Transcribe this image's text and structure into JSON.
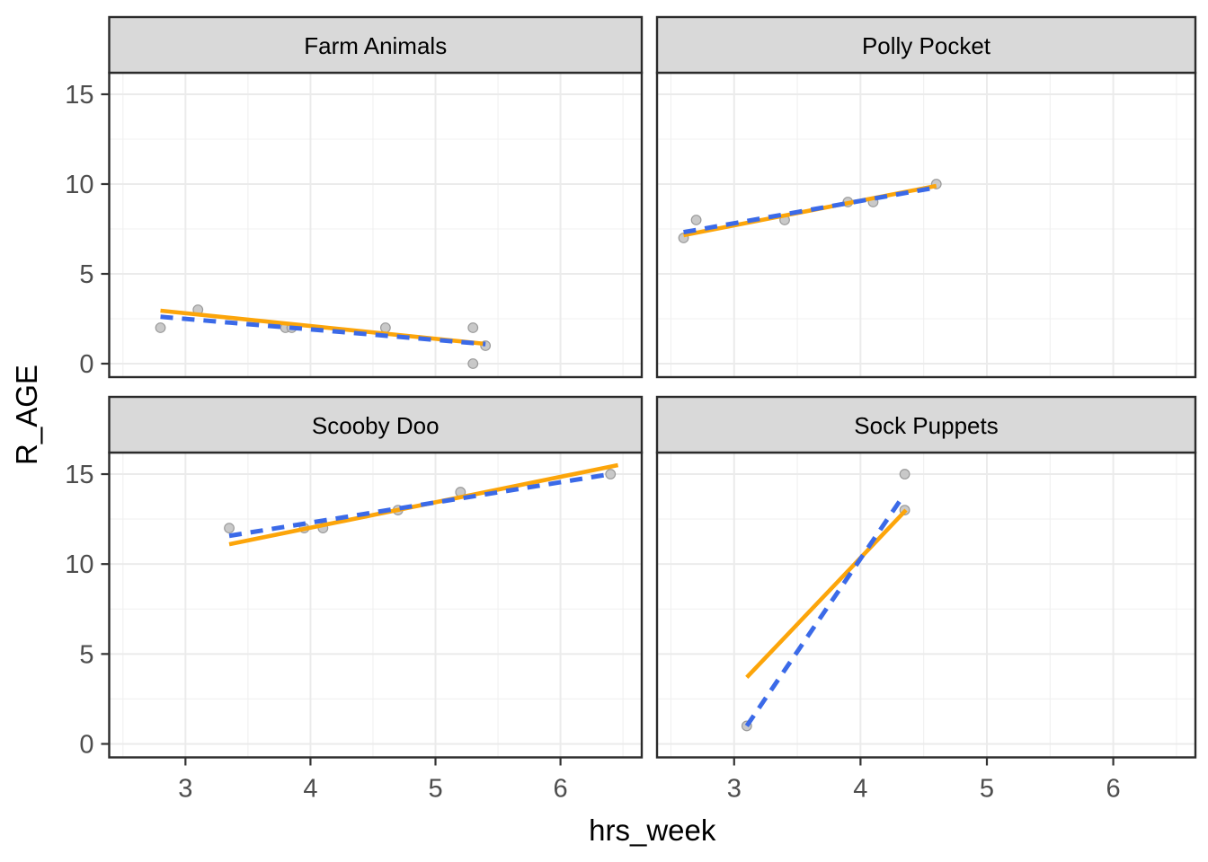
{
  "chart_data": {
    "type": "scatter",
    "title": "",
    "xlabel": "hrs_week",
    "ylabel": "R_AGE",
    "legend_position": "none",
    "grid": "on",
    "axes": {
      "x": {
        "title": "hrs_week",
        "breaks": [
          3,
          4,
          5,
          6
        ],
        "minor_breaks": [
          2.5,
          3.5,
          4.5,
          5.5,
          6.5
        ],
        "domain": [
          2.39,
          6.65
        ]
      },
      "y": {
        "title": "R_AGE",
        "breaks": [
          0,
          5,
          10,
          15
        ],
        "minor_breaks": [
          2.5,
          7.5,
          12.5
        ],
        "domain": [
          -0.75,
          16.2
        ]
      }
    },
    "colors": {
      "solid_trend": "#FCA50A",
      "dashed_trend": "#3B6AE8",
      "point_fill": "#C6C6C6",
      "point_stroke": "#9A9A9A",
      "grid_major": "#EBEBEB",
      "strip_bg": "#D9D9D9",
      "panel_border": "#2B2B2B",
      "tick_label": "#4D4D4D"
    },
    "facets": [
      {
        "label": "Farm Animals",
        "row": 0,
        "col": 0,
        "points": [
          [
            2.8,
            2
          ],
          [
            3.1,
            3
          ],
          [
            3.8,
            2
          ],
          [
            3.85,
            2
          ],
          [
            4.6,
            2
          ],
          [
            5.3,
            2
          ],
          [
            5.4,
            1
          ],
          [
            5.3,
            0
          ]
        ],
        "trend_solid": [
          [
            2.8,
            2.95
          ],
          [
            5.4,
            1.1
          ]
        ],
        "trend_dashed": [
          [
            2.8,
            2.61
          ],
          [
            5.4,
            1.09
          ]
        ]
      },
      {
        "label": "Polly Pocket",
        "row": 0,
        "col": 1,
        "points": [
          [
            2.6,
            7
          ],
          [
            2.7,
            8
          ],
          [
            3.4,
            8
          ],
          [
            3.9,
            9
          ],
          [
            4.1,
            9
          ],
          [
            4.6,
            10
          ]
        ],
        "trend_solid": [
          [
            2.6,
            7.15
          ],
          [
            4.6,
            9.9
          ]
        ],
        "trend_dashed": [
          [
            2.6,
            7.32
          ],
          [
            4.6,
            9.81
          ]
        ]
      },
      {
        "label": "Scooby Doo",
        "row": 1,
        "col": 0,
        "points": [
          [
            3.35,
            12
          ],
          [
            3.95,
            12
          ],
          [
            4.1,
            12
          ],
          [
            4.7,
            13
          ],
          [
            5.2,
            14
          ],
          [
            6.4,
            15
          ]
        ],
        "trend_solid": [
          [
            3.35,
            11.1
          ],
          [
            6.46,
            15.5
          ]
        ],
        "trend_dashed": [
          [
            3.35,
            11.57
          ],
          [
            6.4,
            15.0
          ]
        ]
      },
      {
        "label": "Sock Puppets",
        "row": 1,
        "col": 1,
        "points": [
          [
            3.1,
            1
          ],
          [
            4.35,
            13
          ],
          [
            4.35,
            15
          ]
        ],
        "trend_solid": [
          [
            3.1,
            3.7
          ],
          [
            4.36,
            13.0
          ]
        ],
        "trend_dashed": [
          [
            3.1,
            1.0
          ],
          [
            4.32,
            13.6
          ]
        ]
      }
    ]
  }
}
